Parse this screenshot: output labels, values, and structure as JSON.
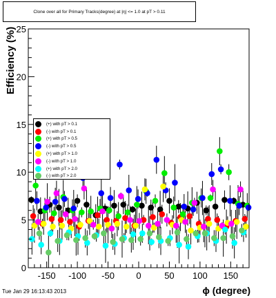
{
  "chart_data": {
    "type": "scatter",
    "title": "Clone  over all for Primary Tracks(degree) at |η| <= 1.0 at pT > 0.11",
    "xlabel": "ϕ (degree)",
    "ylabel": "Efficiency (%)",
    "xlim": [
      -180,
      180
    ],
    "ylim": [
      0,
      25
    ],
    "x_ticks": [
      -150,
      -100,
      -50,
      0,
      50,
      100,
      150
    ],
    "y_ticks": [
      0,
      5,
      10,
      15,
      20,
      25
    ],
    "grid": false,
    "legend_placement": "middle-left",
    "series": [
      {
        "name": "(+) with pT > 0.1",
        "color": "#000000",
        "x": [
          -175,
          -160,
          -145,
          -130,
          -115,
          -100,
          -85,
          -70,
          -55,
          -40,
          -25,
          -10,
          5,
          20,
          35,
          50,
          65,
          80,
          95,
          110,
          125,
          140,
          155,
          170
        ],
        "y": [
          7.1,
          5.9,
          6.6,
          6.3,
          6.0,
          7.0,
          6.6,
          5.5,
          6.2,
          6.5,
          6.6,
          6.1,
          6.5,
          6.3,
          6.1,
          7.0,
          6.4,
          6.2,
          6.8,
          6.0,
          6.4,
          7.1,
          7.0,
          6.6
        ]
      },
      {
        "name": "(-) with pT > 0.1",
        "color": "#ff0000",
        "x": [
          -172,
          -157,
          -142,
          -127,
          -112,
          -97,
          -82,
          -67,
          -52,
          -37,
          -22,
          -7,
          8,
          23,
          38,
          53,
          68,
          83,
          98,
          113,
          128,
          143,
          158,
          173
        ],
        "y": [
          5.4,
          4.6,
          5.1,
          5.0,
          4.8,
          4.3,
          4.9,
          5.5,
          5.0,
          4.9,
          5.2,
          4.4,
          5.0,
          5.3,
          5.6,
          4.7,
          5.3,
          5.4,
          4.6,
          5.1,
          5.0,
          4.3,
          4.9,
          5.1
        ]
      },
      {
        "name": "(+) with pT > 0.5",
        "color": "#00ee00",
        "x": [
          -168,
          -153,
          -138,
          -123,
          -108,
          -93,
          -78,
          -63,
          -48,
          -33,
          -18,
          -3,
          12,
          27,
          42,
          57,
          72,
          87,
          102,
          117,
          132,
          147,
          162,
          177
        ],
        "y": [
          8.6,
          6.0,
          5.7,
          7.4,
          6.0,
          5.8,
          5.9,
          6.2,
          6.0,
          5.4,
          5.8,
          6.6,
          8.0,
          7.0,
          9.9,
          6.3,
          5.6,
          6.8,
          7.3,
          7.3,
          12.2,
          10.0,
          6.7,
          6.5
        ]
      },
      {
        "name": "(-) with pT > 0.5",
        "color": "#0000ff",
        "x": [
          -166,
          -151,
          -136,
          -121,
          -106,
          -91,
          -76,
          -61,
          -46,
          -31,
          -16,
          -1,
          14,
          29,
          44,
          59,
          74,
          89,
          104,
          119,
          134,
          149,
          164,
          179
        ],
        "y": [
          7.0,
          6.3,
          6.9,
          7.2,
          6.2,
          9.4,
          10.5,
          7.8,
          7.3,
          10.8,
          8.1,
          7.2,
          7.8,
          11.3,
          8.1,
          8.9,
          6.4,
          6.1,
          7.3,
          9.8,
          10.3,
          7.0,
          6.5,
          6.3
        ]
      },
      {
        "name": "(+) with pT > 1.0",
        "color": "#ffff00",
        "x": [
          -170,
          -155,
          -140,
          -125,
          -110,
          -95,
          -80,
          -65,
          -50,
          -35,
          -20,
          -5,
          10,
          25,
          40,
          55,
          70,
          85,
          100,
          115,
          130,
          145,
          160,
          175
        ],
        "y": [
          4.4,
          4.6,
          4.3,
          4.4,
          4.1,
          4.5,
          4.9,
          4.3,
          4.5,
          4.6,
          4.3,
          4.4,
          8.2,
          4.2,
          8.5,
          4.5,
          5.0,
          3.9,
          4.2,
          4.6,
          4.1,
          4.7,
          4.8,
          4.3
        ]
      },
      {
        "name": "(-) with pT > 1.0",
        "color": "#ff00ff",
        "x": [
          -164,
          -149,
          -134,
          -119,
          -104,
          -89,
          -74,
          -59,
          -44,
          -29,
          -14,
          1,
          16,
          31,
          46,
          61,
          76,
          91,
          106,
          121,
          136,
          151,
          166,
          181
        ],
        "y": [
          4.8,
          6.9,
          7.8,
          5.6,
          5.1,
          8.3,
          4.5,
          5.9,
          4.1,
          7.5,
          5.0,
          4.9,
          4.4,
          4.6,
          5.0,
          4.4,
          4.8,
          6.8,
          4.3,
          8.2,
          4.4,
          4.6,
          8.2,
          4.8
        ]
      },
      {
        "name": "(+) with pT > 2.0",
        "color": "#00ffff",
        "x": [
          -174,
          -159,
          -144,
          -129,
          -114,
          -99,
          -84,
          -69,
          -54,
          -39,
          -24,
          -9,
          6,
          21,
          36,
          51,
          66,
          81,
          96,
          111,
          126,
          141,
          156,
          171
        ],
        "y": [
          3.0,
          2.4,
          3.6,
          2.8,
          3.7,
          3.3,
          2.6,
          3.4,
          2.3,
          2.5,
          3.1,
          3.5,
          3.6,
          2.7,
          2.8,
          3.1,
          2.4,
          2.2,
          3.3,
          3.6,
          2.8,
          4.0,
          2.6,
          3.7
        ]
      },
      {
        "name": "(-) with pT > 2.0",
        "color": "#66cc66",
        "x": [
          -162,
          -147,
          -132,
          -117,
          -102,
          -87,
          -72,
          -57,
          -42,
          -27,
          -12,
          3,
          18,
          33,
          48,
          63,
          78,
          93,
          108,
          123,
          138,
          153,
          168
        ],
        "y": [
          3.6,
          1.6,
          2.8,
          3.4,
          2.9,
          3.1,
          3.3,
          3.6,
          2.7,
          3.0,
          2.9,
          3.0,
          3.6,
          3.2,
          2.8,
          3.7,
          3.0,
          3.6,
          3.6,
          3.1,
          3.1,
          3.3,
          3.9
        ]
      }
    ]
  },
  "page": {
    "datestamp": "Tue Jan 29 16:13:43 2013"
  },
  "colors": {
    "frame": "#000000",
    "background": "#ffffff"
  }
}
